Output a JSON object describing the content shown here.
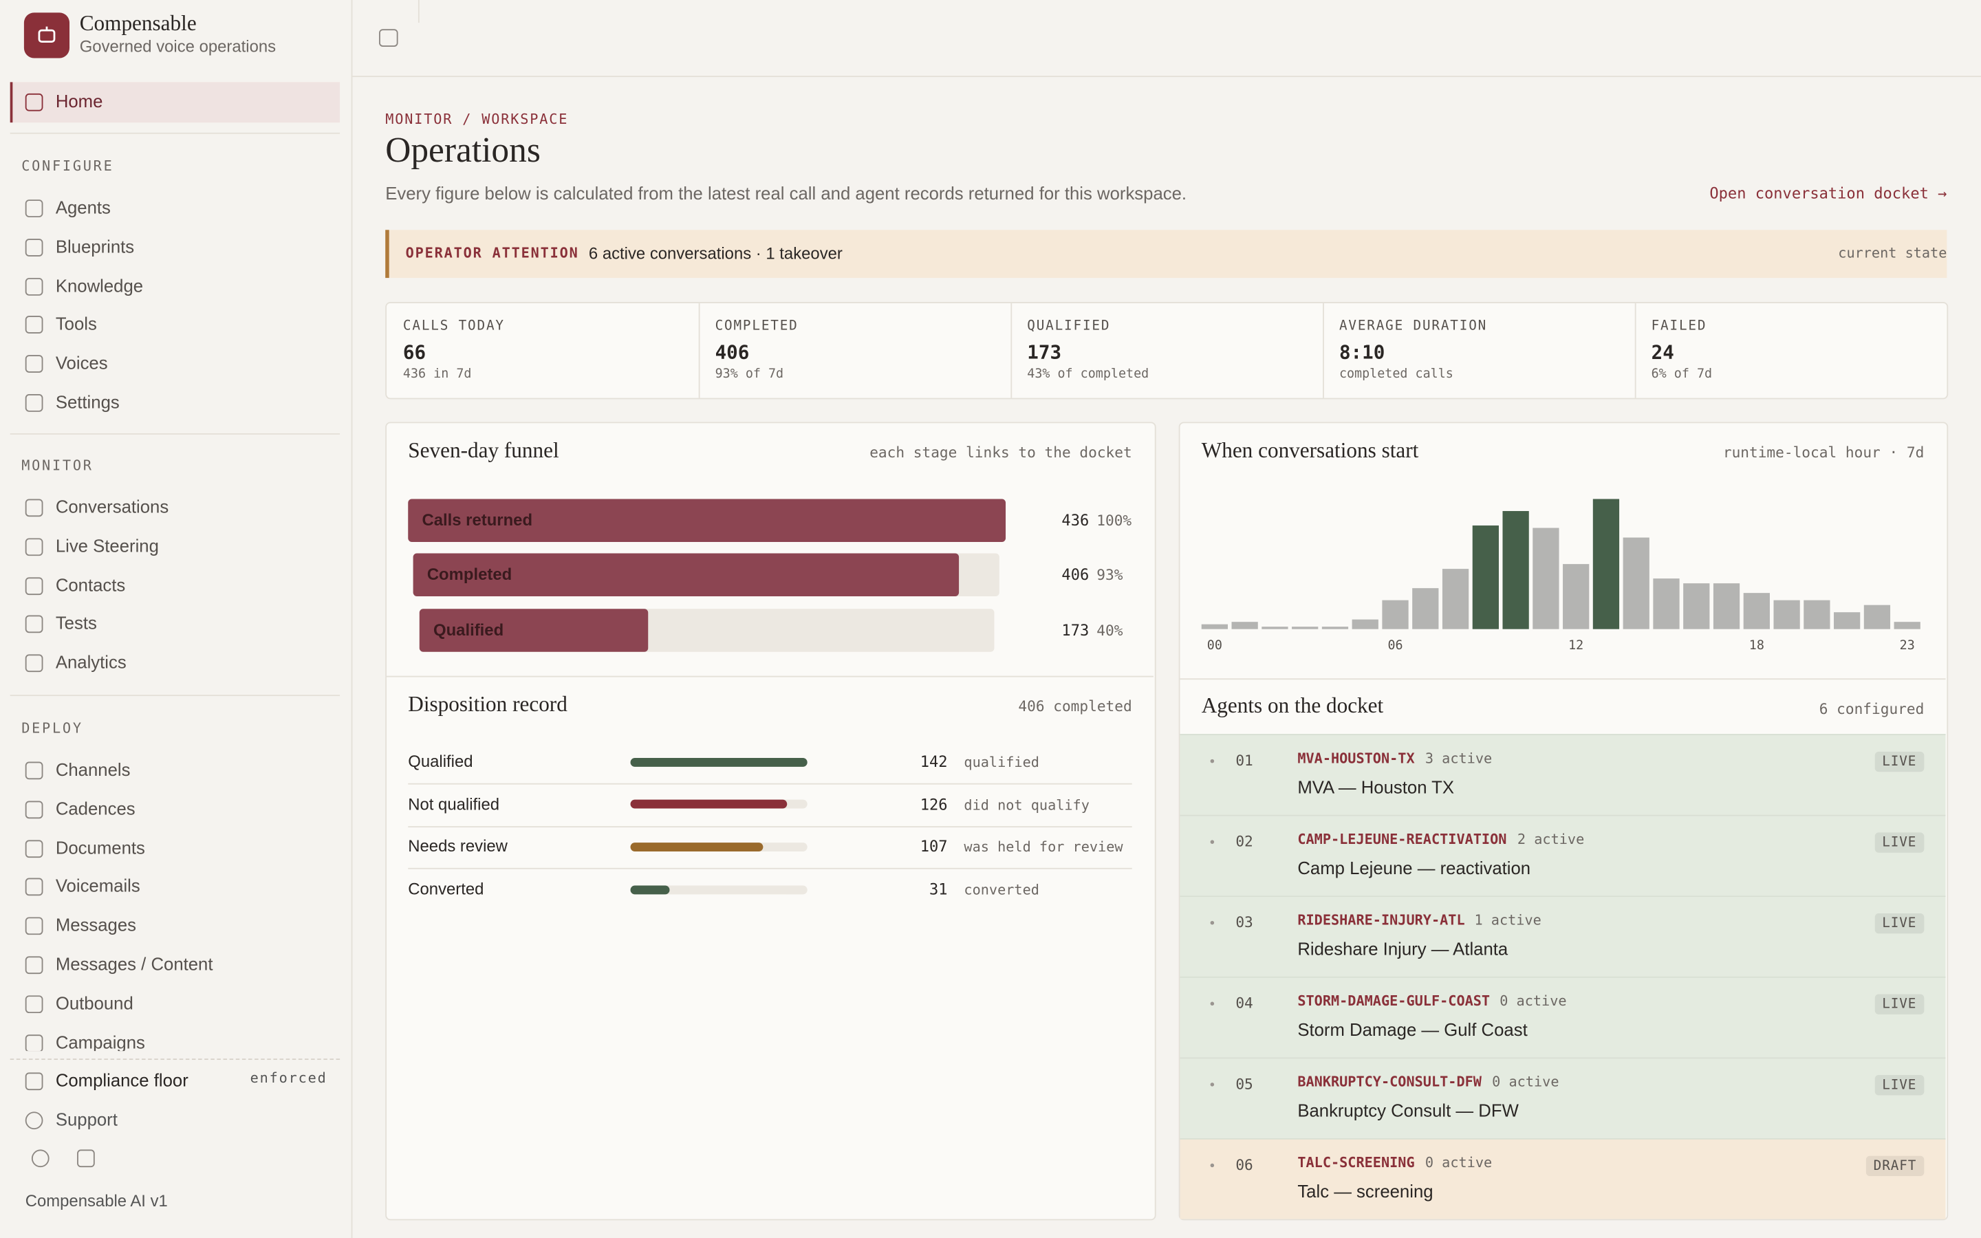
{
  "sidebar": {
    "brand": "Compensable",
    "tagline": "Governed voice operations",
    "home": "Home",
    "sections": [
      {
        "title": "CONFIGURE",
        "items": [
          "Agents",
          "Blueprints",
          "Knowledge",
          "Tools",
          "Voices",
          "Settings"
        ]
      },
      {
        "title": "MONITOR",
        "items": [
          "Conversations",
          "Live Steering",
          "Contacts",
          "Tests",
          "Analytics"
        ]
      },
      {
        "title": "DEPLOY",
        "items": [
          "Channels",
          "Cadences",
          "Documents",
          "Voicemails",
          "Messages",
          "Messages / Content",
          "Outbound",
          "Campaigns"
        ]
      }
    ],
    "compliance": "Compliance floor",
    "compliance_state": "enforced",
    "support": "Support",
    "version": "Compensable AI v1"
  },
  "header": {
    "breadcrumb": "MONITOR / WORKSPACE",
    "title": "Operations",
    "subtitle": "Every figure below is calculated from the latest real call and agent records returned for this workspace.",
    "link": "Open conversation docket →"
  },
  "attention": {
    "label": "OPERATOR ATTENTION",
    "text": "6 active conversations · 1 takeover",
    "state": "current state"
  },
  "kpis": [
    {
      "label": "CALLS TODAY",
      "value": 66,
      "note": "436 in 7d"
    },
    {
      "label": "COMPLETED",
      "value": 406,
      "note": "93% of 7d"
    },
    {
      "label": "QUALIFIED",
      "value": 173,
      "note": "43% of completed"
    },
    {
      "label": "AVERAGE DURATION",
      "value": "8:10",
      "note": "completed calls"
    },
    {
      "label": "FAILED",
      "value": 24,
      "note": "6% of 7d"
    }
  ],
  "funnel": {
    "title": "Seven-day funnel",
    "note": "each stage links to the docket",
    "color": "#8c4552",
    "stages": [
      {
        "name": "Calls returned",
        "value": 436,
        "share": "100%"
      },
      {
        "name": "Completed",
        "value": 406,
        "share": "93%"
      },
      {
        "name": "Qualified",
        "value": 173,
        "share": "40%"
      }
    ]
  },
  "disposition": {
    "title": "Disposition record",
    "note": "406 completed",
    "rows": [
      {
        "name": "Qualified",
        "value": 142,
        "desc": "qualified",
        "color": "#46604a"
      },
      {
        "name": "Not qualified",
        "value": 126,
        "desc": "did not qualify",
        "color": "#8a3039"
      },
      {
        "name": "Needs review",
        "value": 107,
        "desc": "was held for review",
        "color": "#9a6a2c"
      },
      {
        "name": "Converted",
        "value": 31,
        "desc": "converted",
        "color": "#46604a"
      }
    ]
  },
  "hourly": {
    "title": "When conversations start",
    "note": "runtime-local hour · 7d",
    "values": [
      2,
      3,
      1,
      1,
      1,
      4,
      12,
      17,
      25,
      43,
      49,
      42,
      27,
      54,
      38,
      21,
      19,
      19,
      15,
      12,
      12,
      7,
      10,
      3
    ],
    "bar_color": "#b4b4b2",
    "peak_color": "#46604a",
    "peak_hours": [
      9,
      10,
      13
    ],
    "xticks": [
      {
        "value": 0,
        "label": "00"
      },
      {
        "value": 6,
        "label": "06"
      },
      {
        "value": 12,
        "label": "12"
      },
      {
        "value": 18,
        "label": "18"
      },
      {
        "value": 23,
        "label": "23"
      }
    ]
  },
  "agents": {
    "title": "Agents on the docket",
    "note": "6 configured",
    "rows": [
      {
        "index": "01",
        "slug": "MVA-HOUSTON-TX",
        "active": "3 active",
        "name": "MVA — Houston TX",
        "status": "LIVE",
        "color": "#e4ebe0"
      },
      {
        "index": "02",
        "slug": "CAMP-LEJEUNE-REACTIVATION",
        "active": "2 active",
        "name": "Camp Lejeune — reactivation",
        "status": "LIVE",
        "color": "#e4ebe0"
      },
      {
        "index": "03",
        "slug": "RIDESHARE-INJURY-ATL",
        "active": "1 active",
        "name": "Rideshare Injury — Atlanta",
        "status": "LIVE",
        "color": "#e4ebe0"
      },
      {
        "index": "04",
        "slug": "STORM-DAMAGE-GULF-COAST",
        "active": "0 active",
        "name": "Storm Damage — Gulf Coast",
        "status": "LIVE",
        "color": "#e4ebe0"
      },
      {
        "index": "05",
        "slug": "BANKRUPTCY-CONSULT-DFW",
        "active": "0 active",
        "name": "Bankruptcy Consult — DFW",
        "status": "LIVE",
        "color": "#e4ebe0"
      },
      {
        "index": "06",
        "slug": "TALC-SCREENING",
        "active": "0 active",
        "name": "Talc — screening",
        "status": "DRAFT",
        "color": "#f6e9d8"
      }
    ]
  }
}
